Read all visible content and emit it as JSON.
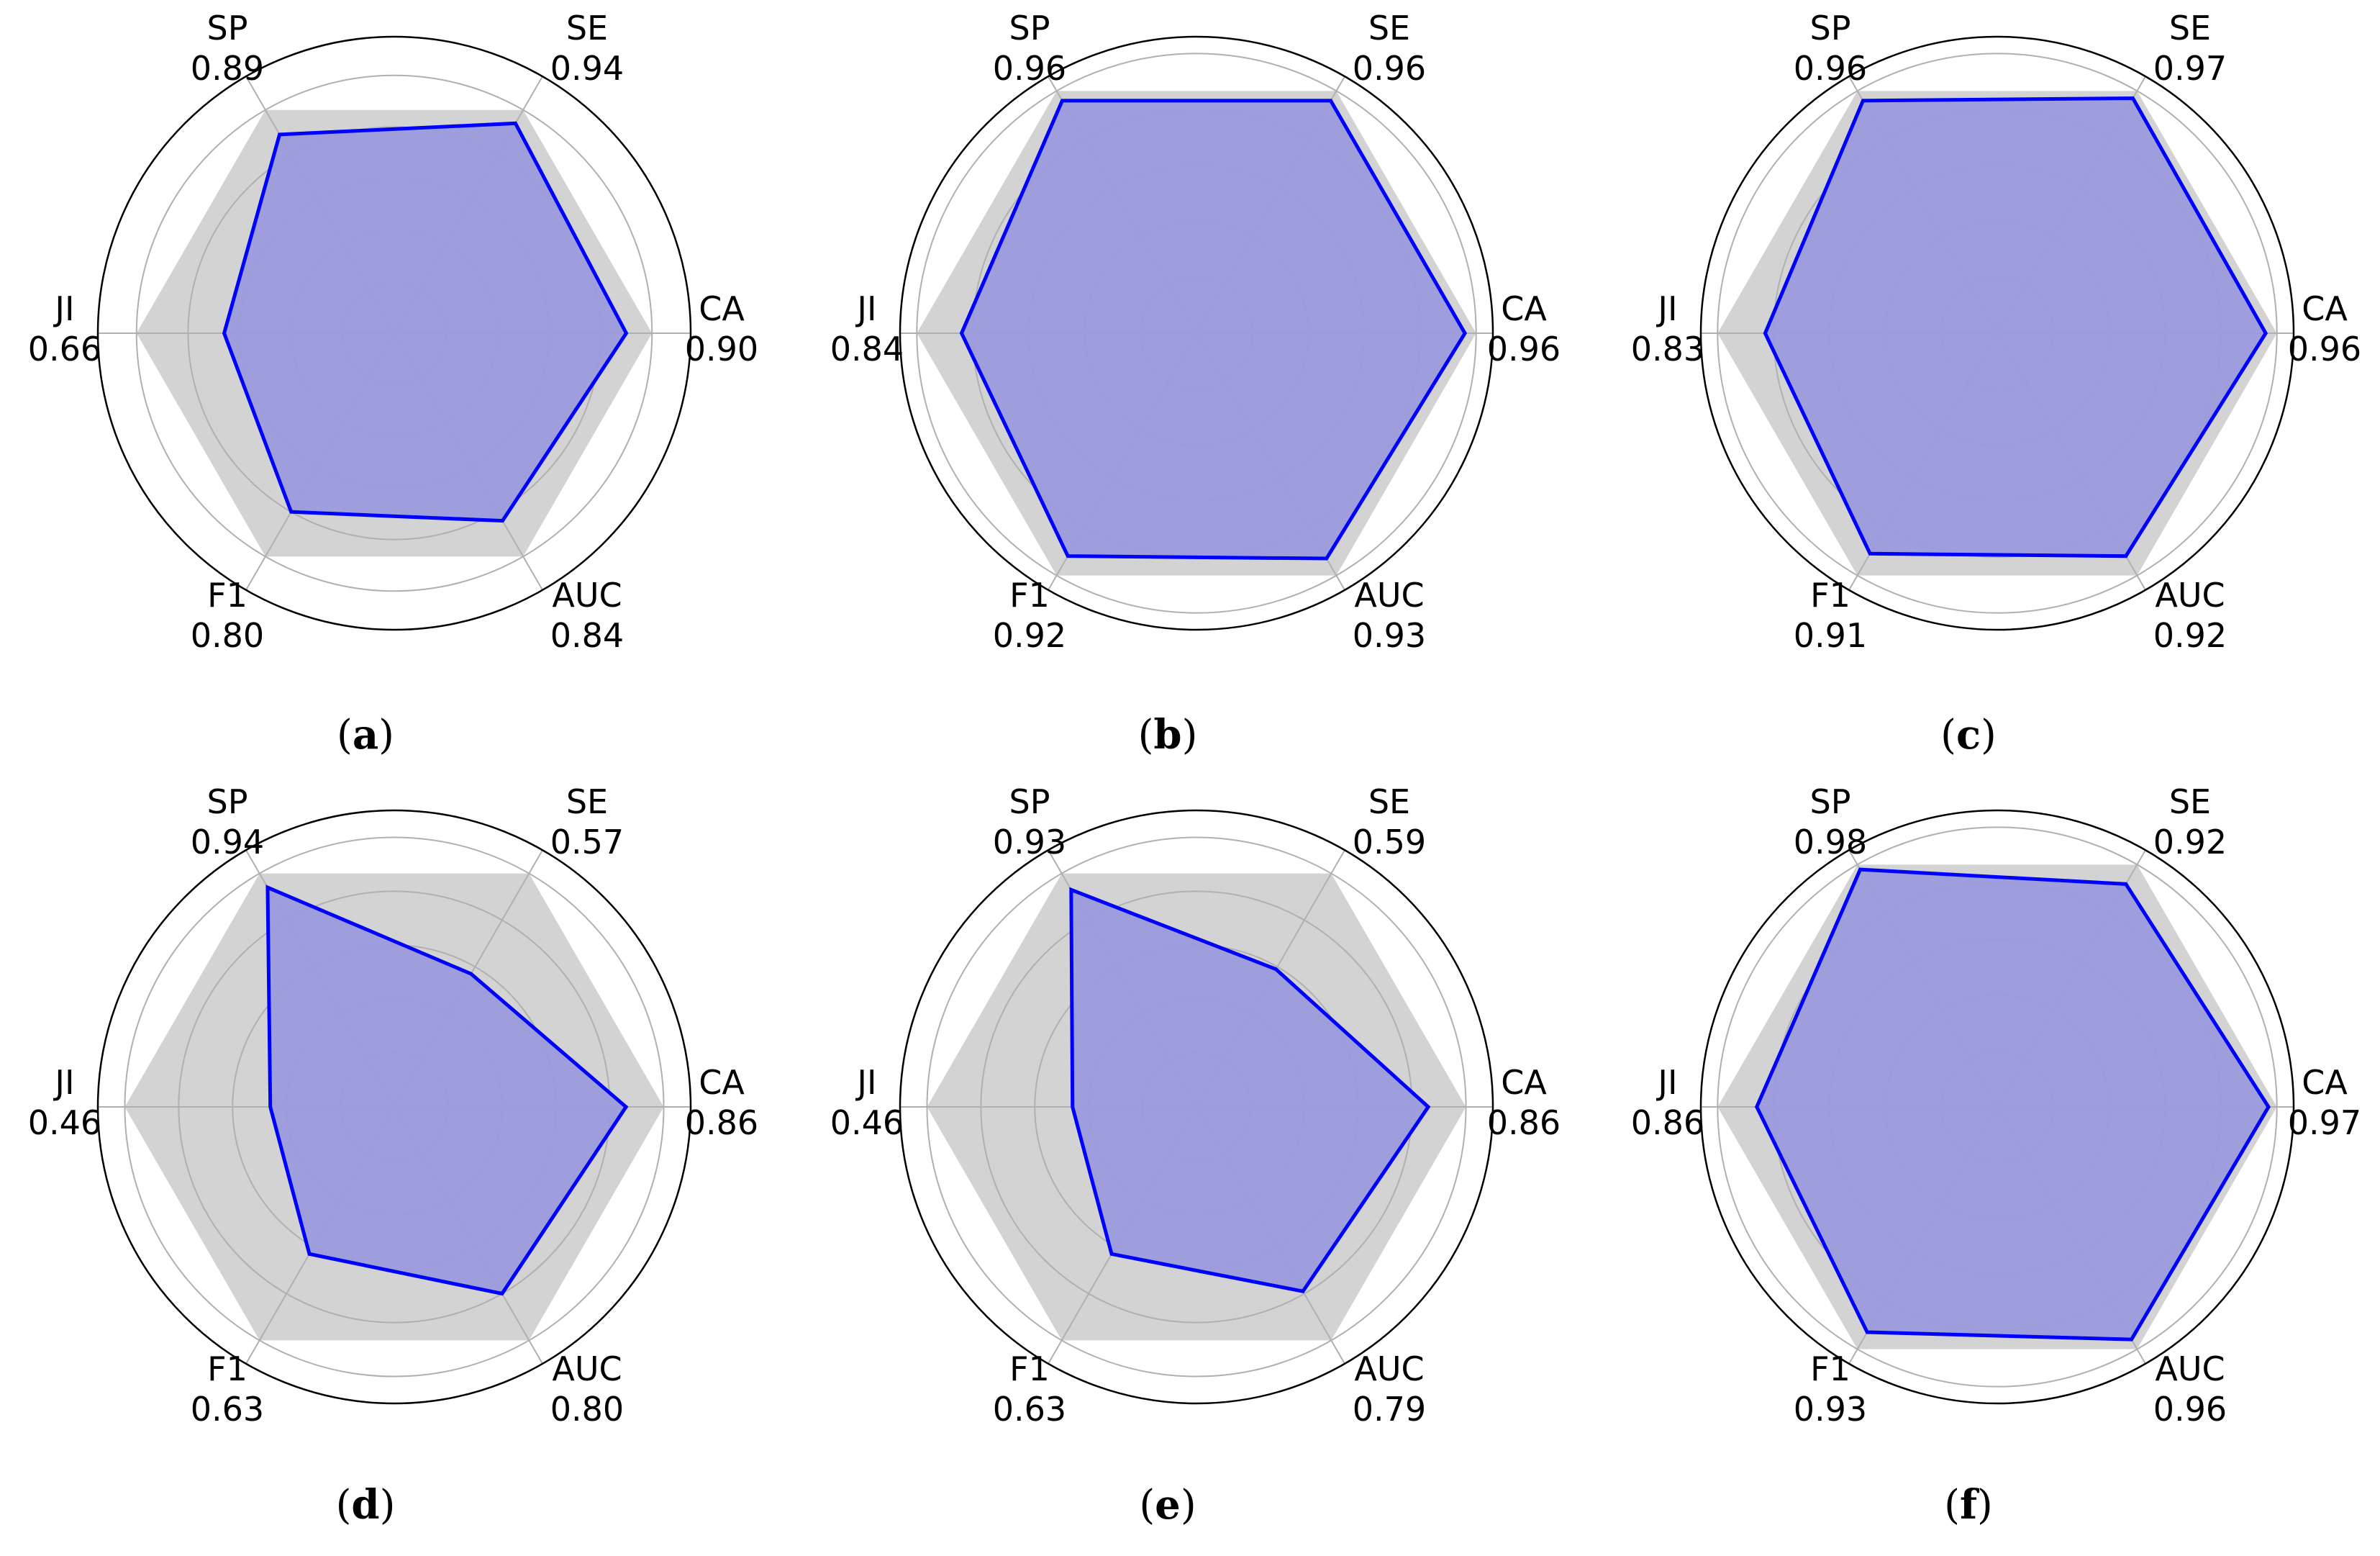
{
  "style": {
    "series_color": "#0000ff",
    "series_fill": "#9b9bdc",
    "reference_fill": "#d3d3d3",
    "grid_color": "#b0b0b0",
    "outer_circle_color": "#000000"
  },
  "chart_data": [
    {
      "type": "radar",
      "caption_letter": "a",
      "axes": [
        "CA",
        "SE",
        "SP",
        "JI",
        "F1",
        "AUC"
      ],
      "values": [
        0.9,
        0.94,
        0.89,
        0.66,
        0.8,
        0.84
      ],
      "value_labels": [
        "0.90",
        "0.94",
        "0.89",
        "0.66",
        "0.80",
        "0.84"
      ],
      "reference": 1.0,
      "rlim": [
        0,
        1.15
      ],
      "grid": true
    },
    {
      "type": "radar",
      "caption_letter": "b",
      "axes": [
        "CA",
        "SE",
        "SP",
        "JI",
        "F1",
        "AUC"
      ],
      "values": [
        0.96,
        0.96,
        0.96,
        0.84,
        0.92,
        0.93
      ],
      "value_labels": [
        "0.96",
        "0.96",
        "0.96",
        "0.84",
        "0.92",
        "0.93"
      ],
      "reference": 1.0,
      "rlim": [
        0,
        1.06
      ],
      "grid": true
    },
    {
      "type": "radar",
      "caption_letter": "c",
      "axes": [
        "CA",
        "SE",
        "SP",
        "JI",
        "F1",
        "AUC"
      ],
      "values": [
        0.96,
        0.97,
        0.96,
        0.83,
        0.91,
        0.92
      ],
      "value_labels": [
        "0.96",
        "0.97",
        "0.96",
        "0.83",
        "0.91",
        "0.92"
      ],
      "reference": 1.0,
      "rlim": [
        0,
        1.06
      ],
      "grid": true
    },
    {
      "type": "radar",
      "caption_letter": "d",
      "axes": [
        "CA",
        "SE",
        "SP",
        "JI",
        "F1",
        "AUC"
      ],
      "values": [
        0.86,
        0.57,
        0.94,
        0.46,
        0.63,
        0.8
      ],
      "value_labels": [
        "0.86",
        "0.57",
        "0.94",
        "0.46",
        "0.63",
        "0.80"
      ],
      "reference": 1.0,
      "rlim": [
        0,
        1.1
      ],
      "grid": true
    },
    {
      "type": "radar",
      "caption_letter": "e",
      "axes": [
        "CA",
        "SE",
        "SP",
        "JI",
        "F1",
        "AUC"
      ],
      "values": [
        0.86,
        0.59,
        0.93,
        0.46,
        0.63,
        0.79
      ],
      "value_labels": [
        "0.86",
        "0.59",
        "0.93",
        "0.46",
        "0.63",
        "0.79"
      ],
      "reference": 1.0,
      "rlim": [
        0,
        1.1
      ],
      "grid": true
    },
    {
      "type": "radar",
      "caption_letter": "f",
      "axes": [
        "CA",
        "SE",
        "SP",
        "JI",
        "F1",
        "AUC"
      ],
      "values": [
        0.97,
        0.92,
        0.98,
        0.86,
        0.93,
        0.96
      ],
      "value_labels": [
        "0.97",
        "0.92",
        "0.98",
        "0.86",
        "0.93",
        "0.96"
      ],
      "reference": 1.0,
      "rlim": [
        0,
        1.06
      ],
      "grid": true
    }
  ]
}
